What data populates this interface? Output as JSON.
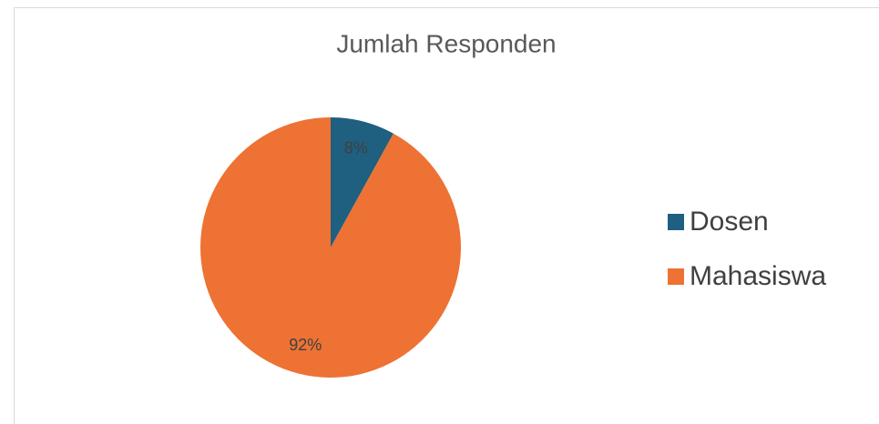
{
  "chart_data": {
    "type": "pie",
    "title": "Jumlah Responden",
    "categories": [
      "Dosen",
      "Mahasiswa"
    ],
    "values": [
      8,
      92
    ],
    "value_labels": [
      "8%",
      "92%"
    ],
    "colors": [
      "#1f5f80",
      "#ed7233"
    ],
    "legend": "right"
  }
}
